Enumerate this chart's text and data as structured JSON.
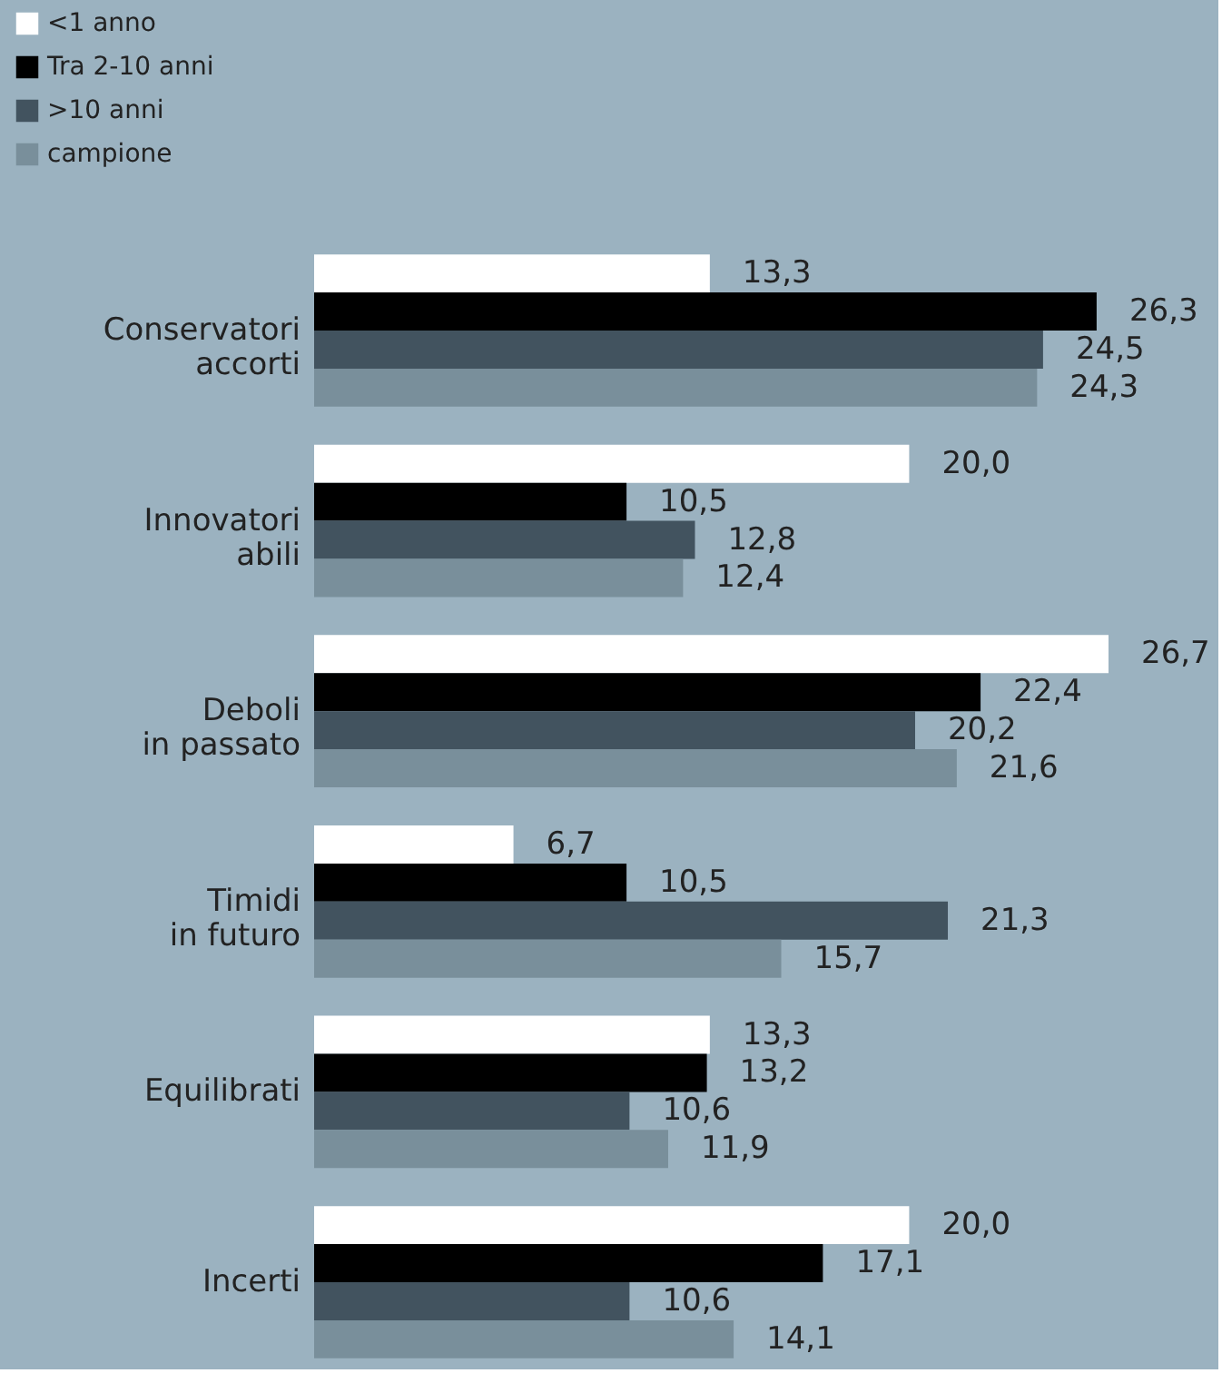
{
  "chart_data": {
    "type": "bar",
    "orientation": "horizontal",
    "categories": [
      "Conservatori accorti",
      "Innovatori abili",
      "Deboli in passato",
      "Timidi in futuro",
      "Equilibrati",
      "Incerti"
    ],
    "series": [
      {
        "name": "<1 anno",
        "color": "#ffffff",
        "values": [
          13.3,
          20.0,
          26.7,
          6.7,
          13.3,
          20.0
        ],
        "value_labels": [
          "13,3",
          "20,0",
          "26,7",
          "6,7",
          "13,3",
          "20,0"
        ]
      },
      {
        "name": "Tra 2-10 anni",
        "color": "#000000",
        "values": [
          26.3,
          10.5,
          22.4,
          10.5,
          13.2,
          17.1
        ],
        "value_labels": [
          "26,3",
          "10,5",
          "22,4",
          "10,5",
          "13,2",
          "17,1"
        ]
      },
      {
        "name": ">10 anni",
        "color": "#42535f",
        "values": [
          24.5,
          12.8,
          20.2,
          21.3,
          10.6,
          10.6
        ],
        "value_labels": [
          "24,5",
          "12,8",
          "20,2",
          "21,3",
          "10,6",
          "10,6"
        ]
      },
      {
        "name": "campione",
        "color": "#798f9b",
        "values": [
          24.3,
          12.4,
          21.6,
          15.7,
          11.9,
          14.1
        ],
        "value_labels": [
          "24,3",
          "12,4",
          "21,6",
          "15,7",
          "11,9",
          "14,1"
        ]
      }
    ],
    "legend": "top left"
  }
}
